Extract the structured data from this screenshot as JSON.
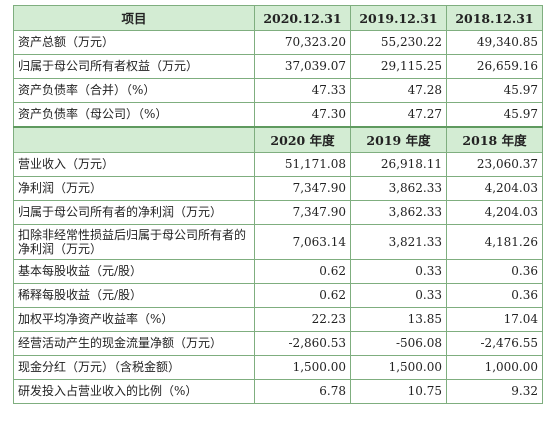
{
  "table": {
    "header1": {
      "label": "项目",
      "cols": [
        "2020.12.31",
        "2019.12.31",
        "2018.12.31"
      ]
    },
    "section1_rows": [
      {
        "label": "资产总额（万元）",
        "values": [
          "70,323.20",
          "55,230.22",
          "49,340.85"
        ]
      },
      {
        "label": "归属于母公司所有者权益（万元）",
        "values": [
          "37,039.07",
          "29,115.25",
          "26,659.16"
        ]
      },
      {
        "label": "资产负债率（合并）（%）",
        "values": [
          "47.33",
          "47.28",
          "45.97"
        ]
      },
      {
        "label": "资产负债率（母公司）（%）",
        "values": [
          "47.30",
          "47.27",
          "45.97"
        ]
      }
    ],
    "header2": {
      "label": "",
      "cols": [
        "2020 年度",
        "2019 年度",
        "2018 年度"
      ]
    },
    "section2_rows": [
      {
        "label": "营业收入（万元）",
        "values": [
          "51,171.08",
          "26,918.11",
          "23,060.37"
        ]
      },
      {
        "label": "净利润（万元）",
        "values": [
          "7,347.90",
          "3,862.33",
          "4,204.03"
        ]
      },
      {
        "label": "归属于母公司所有者的净利润（万元）",
        "values": [
          "7,347.90",
          "3,862.33",
          "4,204.03"
        ]
      },
      {
        "label": "扣除非经常性损益后归属于母公司所有者的净利润（万元）",
        "values": [
          "7,063.14",
          "3,821.33",
          "4,181.26"
        ]
      },
      {
        "label": "基本每股收益（元/股）",
        "values": [
          "0.62",
          "0.33",
          "0.36"
        ]
      },
      {
        "label": "稀释每股收益（元/股）",
        "values": [
          "0.62",
          "0.33",
          "0.36"
        ]
      },
      {
        "label": "加权平均净资产收益率（%）",
        "values": [
          "22.23",
          "13.85",
          "17.04"
        ]
      },
      {
        "label": "经营活动产生的现金流量净额（万元）",
        "values": [
          "-2,860.53",
          "-506.08",
          "-2,476.55"
        ]
      },
      {
        "label": "现金分红（万元）（含税金额）",
        "values": [
          "1,500.00",
          "1,500.00",
          "1,000.00"
        ]
      },
      {
        "label": "研发投入占营业收入的比例（%）",
        "values": [
          "6.78",
          "10.75",
          "9.32"
        ]
      }
    ]
  }
}
